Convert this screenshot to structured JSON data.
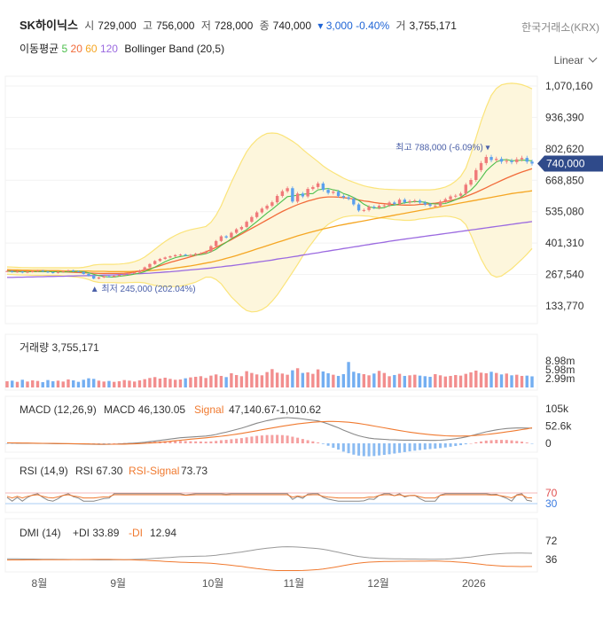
{
  "header": {
    "name": "SK하이닉스",
    "open_label": "시",
    "open": "729,000",
    "high_label": "고",
    "high": "756,000",
    "low_label": "저",
    "low": "728,000",
    "close_label": "종",
    "close": "740,000",
    "change": "▾ 3,000 -0.40%",
    "volume_label": "거",
    "volume": "3,755,171",
    "exchange": "한국거래소(KRX)"
  },
  "indicators": {
    "ma_label": "이동평균",
    "ma5": "5",
    "ma20": "20",
    "ma60": "60",
    "ma120": "120",
    "bb": "Bollinger Band (20,5)"
  },
  "scale_mode": "Linear",
  "colors": {
    "up": "#f07a7a",
    "down": "#5aa0ee",
    "ma5": "#4cbf4c",
    "ma20": "#f26b3a",
    "ma60": "#f5a623",
    "ma120": "#9b6ae0",
    "bb": "#fbe47a",
    "price_tag": "#2f4a8a"
  },
  "annotations": {
    "high": "최고 788,000 (-6.09%) ▾",
    "low": "▲ 최저 245,000 (202.04%)",
    "price_tag": "740,000"
  },
  "panels": {
    "volume": {
      "label": "거래량",
      "value": "3,755,171"
    },
    "macd": {
      "label": "MACD (12,26,9)",
      "macd_label": "MACD",
      "macd": "46,130.05",
      "signal_label": "Signal",
      "signal": "47,140.67",
      "hist": "-1,010.62"
    },
    "rsi": {
      "label": "RSI (14,9)",
      "rsi_label": "RSI",
      "rsi": "67.30",
      "sig_label": "RSI-Signal",
      "sig": "73.73"
    },
    "dmi": {
      "label": "DMI (14)",
      "pdi_label": "+DI",
      "pdi": "33.89",
      "mdi_label": "-DI",
      "mdi": "12.94"
    }
  },
  "chart_data": {
    "type": "line",
    "price_axis_ticks": [
      "1,070,160",
      "936,390",
      "802,620",
      "668,850",
      "535,080",
      "401,310",
      "267,540",
      "133,770"
    ],
    "price_axis_values": [
      1070160,
      936390,
      802620,
      668850,
      535080,
      401310,
      267540,
      133770
    ],
    "volume_axis_ticks": [
      "8.98m",
      "5.98m",
      "2.99m"
    ],
    "volume_axis_values": [
      8980000,
      5980000,
      2990000
    ],
    "macd_axis_ticks": [
      "105k",
      "52.6k",
      "0"
    ],
    "macd_axis_values": [
      105000,
      52600,
      0
    ],
    "rsi_axis_ticks": [
      "70",
      "30"
    ],
    "rsi_axis_values": [
      70,
      30
    ],
    "dmi_axis_ticks": [
      "72",
      "36"
    ],
    "dmi_axis_values": [
      72,
      36
    ],
    "x_ticks": [
      "8월",
      "9월",
      "10월",
      "11월",
      "12월",
      "2026"
    ],
    "close": [
      282000,
      278000,
      280000,
      276000,
      279000,
      281000,
      284000,
      280000,
      277000,
      275000,
      278000,
      282000,
      285000,
      281000,
      279000,
      270000,
      262000,
      250000,
      255000,
      260000,
      258000,
      262000,
      266000,
      268000,
      272000,
      276000,
      285000,
      298000,
      312000,
      325000,
      334000,
      340000,
      345000,
      350000,
      352000,
      349000,
      351000,
      356000,
      358000,
      365000,
      388000,
      410000,
      430000,
      425000,
      445000,
      460000,
      470000,
      492000,
      512000,
      532000,
      548000,
      560000,
      575000,
      602000,
      622000,
      635000,
      578000,
      612000,
      600000,
      632000,
      640000,
      655000,
      628000,
      615000,
      620000,
      602000,
      596000,
      590000,
      566000,
      540000,
      542000,
      556000,
      552000,
      560000,
      562000,
      574000,
      568000,
      586000,
      575000,
      580000,
      582000,
      574000,
      566000,
      560000,
      560000,
      578000,
      588000,
      600000,
      603000,
      612000,
      650000,
      670000,
      712000,
      742000,
      768000,
      755000,
      760000,
      748000,
      752000,
      746000,
      758000,
      764000,
      748000,
      740000
    ],
    "ma5": [
      282000,
      280000,
      280000,
      279000,
      279000,
      279000,
      280000,
      280000,
      280000,
      279000,
      279000,
      278000,
      279000,
      280000,
      281000,
      279000,
      275000,
      268000,
      263000,
      259000,
      257000,
      257000,
      260000,
      262000,
      265000,
      269000,
      273000,
      280000,
      289000,
      299000,
      310000,
      322000,
      331000,
      339000,
      344000,
      347000,
      349000,
      350000,
      352000,
      356000,
      364000,
      375000,
      391000,
      404000,
      420000,
      432000,
      446000,
      458000,
      476000,
      493000,
      511000,
      529000,
      545000,
      563000,
      581000,
      599000,
      602000,
      605000,
      609000,
      611000,
      612000,
      628000,
      631000,
      634000,
      628000,
      624000,
      612000,
      605000,
      595000,
      583000,
      567000,
      556000,
      551000,
      550000,
      552000,
      561000,
      563000,
      568000,
      573000,
      576000,
      578000,
      577000,
      575000,
      570000,
      568000,
      568000,
      570000,
      577000,
      586000,
      596000,
      611000,
      627000,
      649000,
      677000,
      708000,
      729000,
      747000,
      755000,
      757000,
      752000,
      753000,
      754000,
      754000,
      751000
    ],
    "ma20": [
      284000,
      283000,
      282000,
      281000,
      281000,
      280000,
      280000,
      280000,
      280000,
      280000,
      280000,
      279000,
      278000,
      277000,
      276000,
      275000,
      274000,
      273000,
      272000,
      272000,
      272000,
      272000,
      272000,
      273000,
      275000,
      278000,
      282000,
      287000,
      292000,
      298000,
      305000,
      312000,
      319000,
      325000,
      331000,
      337000,
      343000,
      349000,
      356000,
      364000,
      373000,
      383000,
      394000,
      405000,
      416000,
      428000,
      440000,
      452000,
      464000,
      476000,
      488000,
      500000,
      512000,
      524000,
      536000,
      546000,
      556000,
      565000,
      573000,
      580000,
      586000,
      592000,
      596000,
      598000,
      598000,
      597000,
      595000,
      592000,
      589000,
      585000,
      581000,
      578000,
      574000,
      571000,
      569000,
      567000,
      565000,
      564000,
      563000,
      563000,
      564000,
      566000,
      567000,
      569000,
      571000,
      574000,
      578000,
      582000,
      587000,
      593000,
      600000,
      608000,
      617000,
      627000,
      637000,
      648000,
      658000,
      668000,
      678000,
      687000,
      696000,
      704000,
      711000,
      718000
    ],
    "ma60": [
      288000,
      287000,
      287000,
      286000,
      286000,
      285000,
      285000,
      285000,
      284000,
      284000,
      284000,
      283000,
      283000,
      283000,
      282000,
      282000,
      282000,
      281000,
      281000,
      281000,
      280000,
      280000,
      280000,
      280000,
      280000,
      281000,
      282000,
      283000,
      284000,
      286000,
      288000,
      290000,
      292000,
      295000,
      298000,
      301000,
      304000,
      308000,
      312000,
      316000,
      320000,
      325000,
      330000,
      336000,
      342000,
      348000,
      355000,
      362000,
      369000,
      376000,
      383000,
      390000,
      397000,
      404000,
      411000,
      418000,
      425000,
      432000,
      438000,
      444000,
      450000,
      456000,
      461000,
      466000,
      471000,
      476000,
      480000,
      484000,
      488000,
      492000,
      496000,
      500000,
      504000,
      508000,
      512000,
      516000,
      520000,
      524000,
      528000,
      532000,
      536000,
      540000,
      544000,
      548000,
      552000,
      556000,
      560000,
      564000,
      568000,
      572000,
      576000,
      580000,
      584000,
      588000,
      592000,
      596000,
      600000,
      604000,
      608000,
      612000,
      615000,
      618000,
      621000,
      624000
    ],
    "ma120": [
      255000,
      255000,
      256000,
      256000,
      257000,
      257000,
      258000,
      258000,
      259000,
      259000,
      260000,
      260000,
      261000,
      261000,
      262000,
      262000,
      263000,
      263000,
      264000,
      265000,
      265000,
      266000,
      267000,
      268000,
      269000,
      270000,
      271000,
      272000,
      273000,
      275000,
      276000,
      278000,
      279000,
      281000,
      283000,
      285000,
      287000,
      289000,
      291000,
      293000,
      295000,
      298000,
      300000,
      303000,
      305000,
      308000,
      311000,
      314000,
      317000,
      320000,
      323000,
      326000,
      329000,
      333000,
      336000,
      339000,
      343000,
      346000,
      350000,
      353000,
      357000,
      360000,
      364000,
      367000,
      371000,
      374000,
      378000,
      381000,
      385000,
      388000,
      392000,
      395000,
      399000,
      402000,
      405000,
      409000,
      412000,
      415000,
      418000,
      421000,
      424000,
      427000,
      430000,
      433000,
      436000,
      439000,
      442000,
      445000,
      448000,
      451000,
      454000,
      457000,
      460000,
      463000,
      466000,
      469000,
      472000,
      475000,
      478000,
      481000,
      484000,
      487000,
      490000,
      493000
    ],
    "bb_upper": [
      300000,
      299000,
      298000,
      297000,
      297000,
      296000,
      296000,
      296000,
      296000,
      296000,
      296000,
      296000,
      296000,
      296000,
      296000,
      298000,
      302000,
      308000,
      310000,
      311000,
      311000,
      311000,
      312000,
      314000,
      317000,
      322000,
      330000,
      342000,
      358000,
      375000,
      392000,
      408000,
      422000,
      434000,
      444000,
      452000,
      458000,
      463000,
      467000,
      472000,
      490000,
      520000,
      560000,
      610000,
      660000,
      705000,
      750000,
      790000,
      820000,
      842000,
      858000,
      868000,
      870000,
      868000,
      860000,
      848000,
      835000,
      820000,
      800000,
      782000,
      765000,
      748000,
      730000,
      715000,
      702000,
      690000,
      678000,
      668000,
      660000,
      652000,
      645000,
      640000,
      636000,
      633000,
      631000,
      630000,
      629000,
      628000,
      628000,
      628000,
      628000,
      628000,
      628000,
      628000,
      630000,
      634000,
      640000,
      650000,
      665000,
      685000,
      720000,
      780000,
      850000,
      920000,
      980000,
      1030000,
      1060000,
      1075000,
      1080000,
      1082000,
      1080000,
      1076000,
      1068000,
      1058000
    ],
    "bb_lower": [
      268000,
      267000,
      266000,
      265000,
      265000,
      264000,
      264000,
      264000,
      264000,
      264000,
      264000,
      262000,
      260000,
      258000,
      256000,
      252000,
      246000,
      238000,
      234000,
      233000,
      233000,
      233000,
      232000,
      232000,
      233000,
      234000,
      234000,
      232000,
      226000,
      221000,
      218000,
      216000,
      216000,
      216000,
      218000,
      222000,
      228000,
      235000,
      245000,
      256000,
      256000,
      246000,
      228000,
      200000,
      172000,
      151000,
      130000,
      114000,
      108000,
      110000,
      118000,
      132000,
      154000,
      180000,
      212000,
      244000,
      277000,
      310000,
      346000,
      378000,
      407000,
      436000,
      462000,
      481000,
      494000,
      504000,
      512000,
      516000,
      518000,
      518000,
      517000,
      516000,
      512000,
      509000,
      507000,
      504000,
      501000,
      500000,
      498000,
      498000,
      500000,
      504000,
      506000,
      510000,
      512000,
      514000,
      516000,
      514000,
      509000,
      501000,
      480000,
      436000,
      384000,
      334000,
      294000,
      266000,
      256000,
      261000,
      276000,
      292000,
      312000,
      332000,
      354000,
      378000
    ],
    "volume": [
      2100000,
      2300000,
      1900000,
      2600000,
      2000000,
      2400000,
      2200000,
      1800000,
      2500000,
      2100000,
      2300000,
      2000000,
      2700000,
      2400000,
      1900000,
      2600000,
      3100000,
      2900000,
      2300000,
      2000000,
      2200000,
      1900000,
      2100000,
      2500000,
      2300000,
      2000000,
      2400000,
      2800000,
      3200000,
      3500000,
      3000000,
      3300000,
      2900000,
      2600000,
      2700000,
      3100000,
      3400000,
      3600000,
      3800000,
      3200000,
      4000000,
      4400000,
      3900000,
      3500000,
      4800000,
      4200000,
      3800000,
      5500000,
      4900000,
      4400000,
      4100000,
      5200000,
      6200000,
      5000000,
      4700000,
      4300000,
      5800000,
      6500000,
      4900000,
      5100000,
      4600000,
      6100000,
      5400000,
      4800000,
      4300000,
      3900000,
      4500000,
      8600000,
      5300000,
      4800000,
      4500000,
      4100000,
      4700000,
      5600000,
      4900000,
      3800000,
      4200000,
      4600000,
      3900000,
      4100000,
      4300000,
      4000000,
      3800000,
      3600000,
      4500000,
      4100000,
      3700000,
      3900000,
      4200000,
      4000000,
      4600000,
      5100000,
      5700000,
      5000000,
      4800000,
      5300000,
      4900000,
      4400000,
      4700000,
      4100000,
      4300000,
      3900000,
      4000000,
      3755171
    ],
    "macd": [
      1000,
      800,
      600,
      400,
      200,
      0,
      -200,
      -400,
      -600,
      -800,
      -1000,
      -1200,
      -1400,
      -1600,
      -1800,
      -2200,
      -2600,
      -3000,
      -3200,
      -3200,
      -3000,
      -2600,
      -2000,
      -1200,
      -400,
      600,
      1800,
      3200,
      5000,
      7000,
      9000,
      11000,
      13000,
      15000,
      17000,
      18000,
      19000,
      20000,
      21000,
      22000,
      24000,
      27000,
      31000,
      34000,
      38000,
      42000,
      46000,
      51000,
      56000,
      61000,
      65000,
      69000,
      72000,
      75000,
      77000,
      78000,
      77000,
      76000,
      74000,
      72000,
      70000,
      68000,
      64000,
      59000,
      53000,
      47000,
      40000,
      34000,
      28000,
      23000,
      19000,
      16000,
      14000,
      13000,
      12000,
      11000,
      10500,
      10000,
      9800,
      9600,
      9500,
      9400,
      9200,
      9000,
      9000,
      9500,
      10500,
      12000,
      14000,
      16500,
      19500,
      23000,
      27000,
      31000,
      35000,
      38000,
      41000,
      43000,
      45000,
      46000,
      46500,
      46700,
      46400,
      46130
    ],
    "signal": [
      1500,
      1300,
      1100,
      900,
      700,
      500,
      300,
      100,
      -100,
      -300,
      -500,
      -700,
      -900,
      -1100,
      -1300,
      -1500,
      -1800,
      -2100,
      -2400,
      -2600,
      -2700,
      -2700,
      -2600,
      -2300,
      -2000,
      -1500,
      -900,
      -100,
      900,
      2000,
      3300,
      4700,
      6200,
      7800,
      9400,
      11000,
      12600,
      14000,
      15400,
      16800,
      18200,
      19800,
      21500,
      23400,
      25500,
      27800,
      30200,
      32800,
      35500,
      38300,
      41100,
      43900,
      46700,
      49400,
      52000,
      54500,
      56800,
      58900,
      60800,
      62500,
      64000,
      65200,
      66000,
      66400,
      66400,
      66000,
      65200,
      64000,
      62400,
      60400,
      58000,
      55400,
      52600,
      49800,
      47000,
      44200,
      41500,
      38900,
      36400,
      34000,
      31800,
      29800,
      28000,
      26400,
      25000,
      23900,
      23000,
      22400,
      22100,
      22100,
      22400,
      23000,
      24000,
      25300,
      26800,
      28600,
      30500,
      32600,
      34800,
      37000,
      39300,
      41600,
      43900,
      47140
    ]
  }
}
